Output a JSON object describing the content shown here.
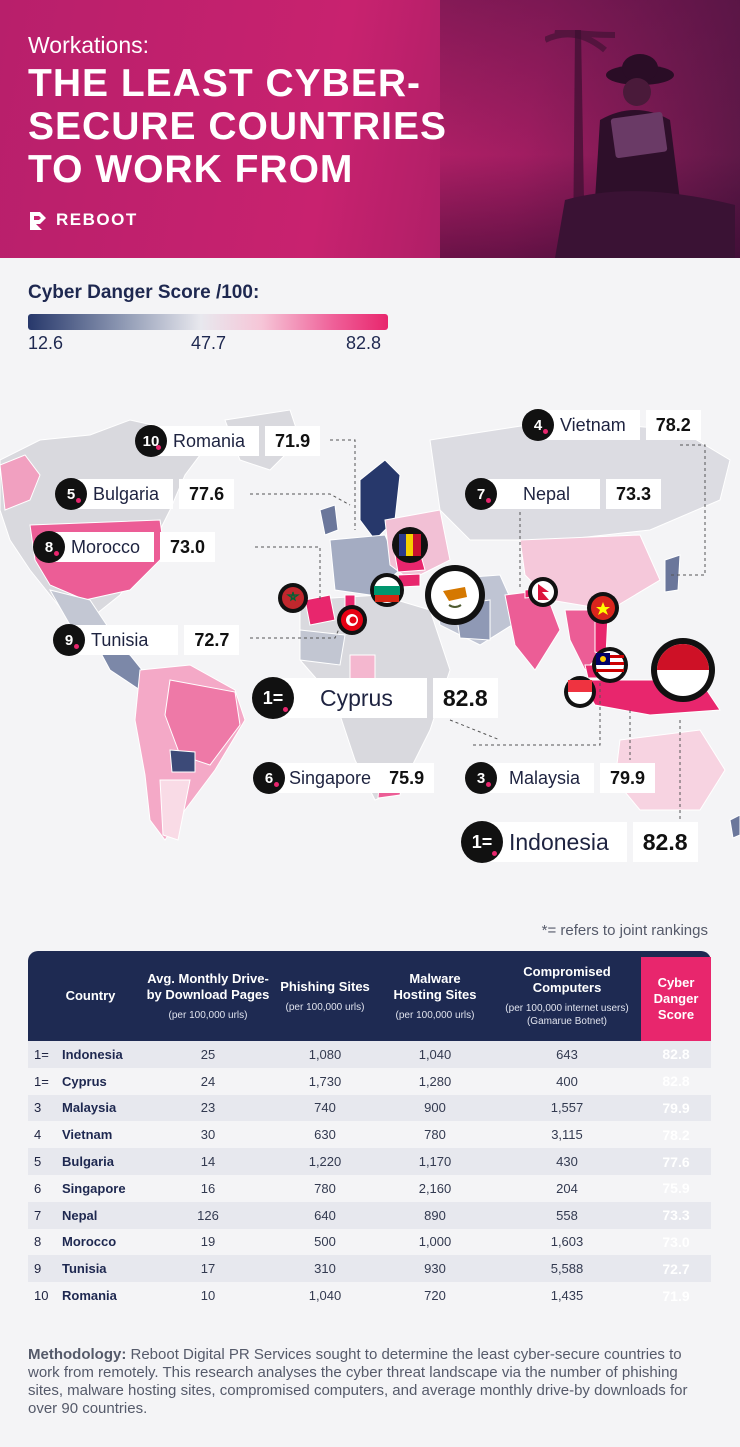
{
  "header": {
    "subtitle": "Workations:",
    "title": "THE LEAST CYBER-SECURE COUNTRIES TO WORK FROM",
    "brand": "REBOOT"
  },
  "legend": {
    "title": "Cyber Danger Score /100:",
    "min": "12.6",
    "mid": "47.7",
    "max": "82.8",
    "colors": [
      "#27386b",
      "#e8e8ee",
      "#e8266d"
    ]
  },
  "map_labels": [
    {
      "rank": "10",
      "country": "Romania",
      "score": "71.9"
    },
    {
      "rank": "4",
      "country": "Vietnam",
      "score": "78.2"
    },
    {
      "rank": "5",
      "country": "Bulgaria",
      "score": "77.6"
    },
    {
      "rank": "7",
      "country": "Nepal",
      "score": "73.3"
    },
    {
      "rank": "8",
      "country": "Morocco",
      "score": "73.0"
    },
    {
      "rank": "9",
      "country": "Tunisia",
      "score": "72.7"
    },
    {
      "rank": "1=",
      "country": "Cyprus",
      "score": "82.8"
    },
    {
      "rank": "6",
      "country": "Singapore",
      "score": "75.9"
    },
    {
      "rank": "3",
      "country": "Malaysia",
      "score": "79.9"
    },
    {
      "rank": "1=",
      "country": "Indonesia",
      "score": "82.8"
    }
  ],
  "footnote": "*= refers to joint rankings",
  "table": {
    "headers": {
      "country": "Country",
      "driveby": "Avg. Monthly Drive-by Download Pages",
      "driveby_sub": "(per 100,000 urls)",
      "phishing": "Phishing Sites",
      "phishing_sub": "(per 100,000 urls)",
      "malware": "Malware Hosting Sites",
      "malware_sub": "(per 100,000 urls)",
      "compromised": "Compromised Computers",
      "compromised_sub": "(per 100,000 internet users) (Gamarue Botnet)",
      "score": "Cyber Danger Score"
    },
    "rows": [
      {
        "rank": "1=",
        "country": "Indonesia",
        "driveby": "25",
        "phishing": "1,080",
        "malware": "1,040",
        "compromised": "643",
        "score": "82.8"
      },
      {
        "rank": "1=",
        "country": "Cyprus",
        "driveby": "24",
        "phishing": "1,730",
        "malware": "1,280",
        "compromised": "400",
        "score": "82.8"
      },
      {
        "rank": "3",
        "country": "Malaysia",
        "driveby": "23",
        "phishing": "740",
        "malware": "900",
        "compromised": "1,557",
        "score": "79.9"
      },
      {
        "rank": "4",
        "country": "Vietnam",
        "driveby": "30",
        "phishing": "630",
        "malware": "780",
        "compromised": "3,115",
        "score": "78.2"
      },
      {
        "rank": "5",
        "country": "Bulgaria",
        "driveby": "14",
        "phishing": "1,220",
        "malware": "1,170",
        "compromised": "430",
        "score": "77.6"
      },
      {
        "rank": "6",
        "country": "Singapore",
        "driveby": "16",
        "phishing": "780",
        "malware": "2,160",
        "compromised": "204",
        "score": "75.9"
      },
      {
        "rank": "7",
        "country": "Nepal",
        "driveby": "126",
        "phishing": "640",
        "malware": "890",
        "compromised": "558",
        "score": "73.3"
      },
      {
        "rank": "8",
        "country": "Morocco",
        "driveby": "19",
        "phishing": "500",
        "malware": "1,000",
        "compromised": "1,603",
        "score": "73.0"
      },
      {
        "rank": "9",
        "country": "Tunisia",
        "driveby": "17",
        "phishing": "310",
        "malware": "930",
        "compromised": "5,588",
        "score": "72.7"
      },
      {
        "rank": "10",
        "country": "Romania",
        "driveby": "10",
        "phishing": "1,040",
        "malware": "720",
        "compromised": "1,435",
        "score": "71.9"
      }
    ]
  },
  "methodology": {
    "label": "Methodology:",
    "text": " Reboot Digital PR Services sought to determine the least cyber-secure countries to work from remotely. This research analyses the cyber threat landscape via the number of phishing sites, malware hosting sites, compromised computers, and average monthly drive-by downloads for over 90 countries."
  }
}
